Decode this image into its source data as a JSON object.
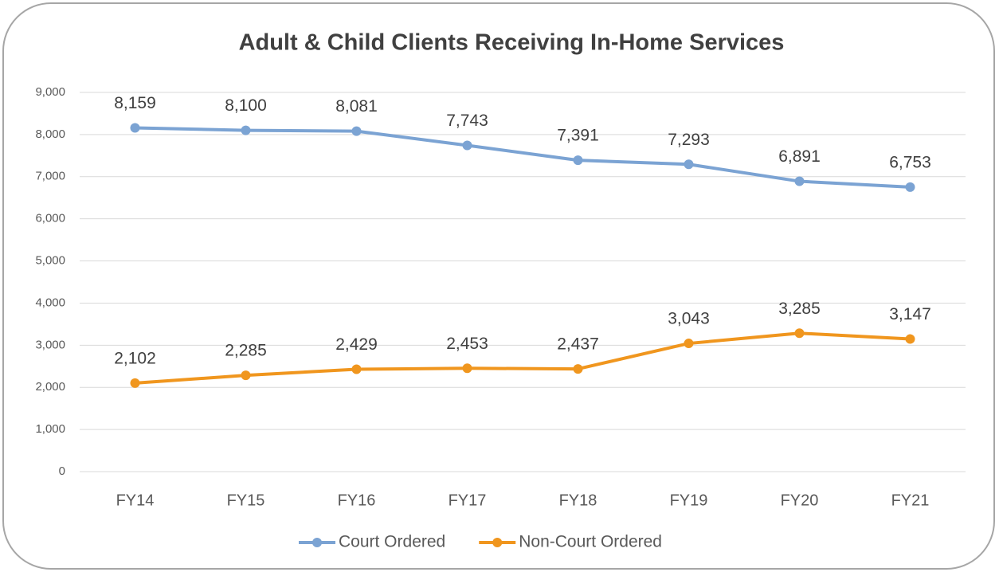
{
  "chart_data": {
    "type": "line",
    "title": "Adult & Child Clients Receiving In-Home Services",
    "categories": [
      "FY14",
      "FY15",
      "FY16",
      "FY17",
      "FY18",
      "FY19",
      "FY20",
      "FY21"
    ],
    "series": [
      {
        "name": "Court Ordered",
        "color": "#7ba3d3",
        "values": [
          8159,
          8100,
          8081,
          7743,
          7391,
          7293,
          6891,
          6753
        ],
        "value_labels": [
          "8,159",
          "8,100",
          "8,081",
          "7,743",
          "7,391",
          "7,293",
          "6,891",
          "6,753"
        ]
      },
      {
        "name": "Non-Court Ordered",
        "color": "#f0961e",
        "values": [
          2102,
          2285,
          2429,
          2453,
          2437,
          3043,
          3285,
          3147
        ],
        "value_labels": [
          "2,102",
          "2,285",
          "2,429",
          "2,453",
          "2,437",
          "3,043",
          "3,285",
          "3,147"
        ]
      }
    ],
    "ylim": [
      0,
      9000
    ],
    "yticks": [
      0,
      {
        "value": 1000,
        "label": "1,000"
      },
      {
        "value": 2000,
        "label": "2,000"
      },
      {
        "value": 3000,
        "label": "3,000"
      },
      {
        "value": 4000,
        "label": "4,000"
      },
      {
        "value": 5000,
        "label": "5,000"
      },
      {
        "value": 6000,
        "label": "6,000"
      },
      {
        "value": 7000,
        "label": "7,000"
      },
      {
        "value": 8000,
        "label": "8,000"
      },
      {
        "value": 9000,
        "label": "9,000"
      }
    ],
    "grid": true,
    "legend": "bottom"
  }
}
